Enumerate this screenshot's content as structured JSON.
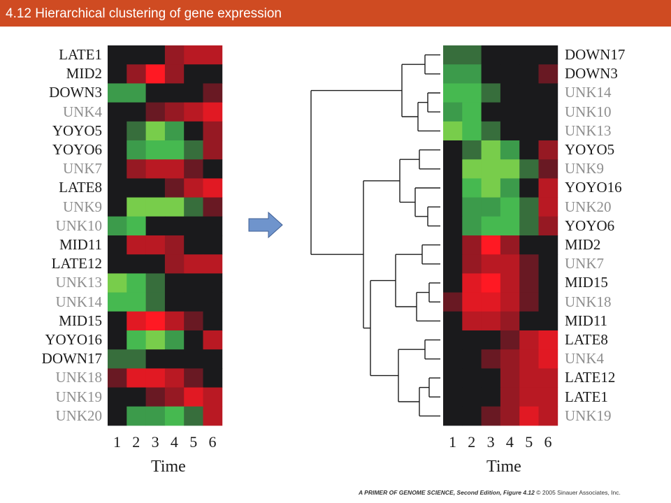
{
  "title": "4.12 Hierarchical clustering of gene expression",
  "time_label": "Time",
  "time_points": [
    "1",
    "2",
    "3",
    "4",
    "5",
    "6"
  ],
  "credit": {
    "book": "A PRIMER OF GENOME SCIENCE, Second Edition, Figure 4.12",
    "copyright": "© 2005 Sinauer Associates, Inc."
  },
  "arrow_icon": "right-arrow-icon",
  "colors": {
    "title_bar": "#cf4b22",
    "arrow_fill": "#6f94cc",
    "label_known": "#1b1b1b",
    "label_unknown": "#8e8e8e"
  },
  "left_panel": {
    "genes": [
      {
        "name": "LATE1",
        "known": true,
        "values": [
          0,
          0,
          0,
          -2,
          -3,
          -3
        ]
      },
      {
        "name": "MID2",
        "known": true,
        "values": [
          0,
          -2,
          -5,
          -2,
          0,
          0
        ]
      },
      {
        "name": "DOWN3",
        "known": true,
        "values": [
          2,
          2,
          0,
          0,
          0,
          -1
        ]
      },
      {
        "name": "UNK4",
        "known": false,
        "values": [
          0,
          0,
          -1,
          -2,
          -3,
          -4
        ]
      },
      {
        "name": "YOYO5",
        "known": true,
        "values": [
          0,
          1,
          4,
          2,
          0,
          -2
        ]
      },
      {
        "name": "YOYO6",
        "known": true,
        "values": [
          0,
          2,
          3,
          3,
          1,
          -2
        ]
      },
      {
        "name": "UNK7",
        "known": false,
        "values": [
          0,
          -2,
          -3,
          -3,
          -1,
          0
        ]
      },
      {
        "name": "LATE8",
        "known": true,
        "values": [
          0,
          0,
          0,
          -1,
          -3,
          -4
        ]
      },
      {
        "name": "UNK9",
        "known": false,
        "values": [
          0,
          4,
          4,
          4,
          1,
          -1
        ]
      },
      {
        "name": "UNK10",
        "known": false,
        "values": [
          2,
          3,
          0,
          0,
          0,
          0
        ]
      },
      {
        "name": "MID11",
        "known": true,
        "values": [
          0,
          -3,
          -3,
          -2,
          0,
          0
        ]
      },
      {
        "name": "LATE12",
        "known": true,
        "values": [
          0,
          0,
          0,
          -2,
          -3,
          -3
        ]
      },
      {
        "name": "UNK13",
        "known": false,
        "values": [
          4,
          3,
          1,
          0,
          0,
          0
        ]
      },
      {
        "name": "UNK14",
        "known": false,
        "values": [
          3,
          3,
          1,
          0,
          0,
          0
        ]
      },
      {
        "name": "MID15",
        "known": true,
        "values": [
          0,
          -4,
          -5,
          -3,
          -1,
          0
        ]
      },
      {
        "name": "YOYO16",
        "known": true,
        "values": [
          0,
          3,
          4,
          2,
          0,
          -3
        ]
      },
      {
        "name": "DOWN17",
        "known": true,
        "values": [
          1,
          1,
          0,
          0,
          0,
          0
        ]
      },
      {
        "name": "UNK18",
        "known": false,
        "values": [
          -1,
          -4,
          -4,
          -3,
          -1,
          0
        ]
      },
      {
        "name": "UNK19",
        "known": false,
        "values": [
          0,
          0,
          -1,
          -2,
          -4,
          -3
        ]
      },
      {
        "name": "UNK20",
        "known": false,
        "values": [
          0,
          2,
          2,
          3,
          1,
          -3
        ]
      }
    ]
  },
  "right_panel": {
    "genes": [
      {
        "name": "DOWN17",
        "known": true,
        "values": [
          1,
          1,
          0,
          0,
          0,
          0
        ]
      },
      {
        "name": "DOWN3",
        "known": true,
        "values": [
          2,
          2,
          0,
          0,
          0,
          -1
        ]
      },
      {
        "name": "UNK14",
        "known": false,
        "values": [
          3,
          3,
          1,
          0,
          0,
          0
        ]
      },
      {
        "name": "UNK10",
        "known": false,
        "values": [
          2,
          3,
          0,
          0,
          0,
          0
        ]
      },
      {
        "name": "UNK13",
        "known": false,
        "values": [
          4,
          3,
          1,
          0,
          0,
          0
        ]
      },
      {
        "name": "YOYO5",
        "known": true,
        "values": [
          0,
          1,
          4,
          2,
          0,
          -2
        ]
      },
      {
        "name": "UNK9",
        "known": false,
        "values": [
          0,
          4,
          4,
          4,
          1,
          -1
        ]
      },
      {
        "name": "YOYO16",
        "known": true,
        "values": [
          0,
          3,
          4,
          2,
          0,
          -3
        ]
      },
      {
        "name": "UNK20",
        "known": false,
        "values": [
          0,
          2,
          2,
          3,
          1,
          -3
        ]
      },
      {
        "name": "YOYO6",
        "known": true,
        "values": [
          0,
          2,
          3,
          3,
          1,
          -2
        ]
      },
      {
        "name": "MID2",
        "known": true,
        "values": [
          0,
          -2,
          -5,
          -2,
          0,
          0
        ]
      },
      {
        "name": "UNK7",
        "known": false,
        "values": [
          0,
          -2,
          -3,
          -3,
          -1,
          0
        ]
      },
      {
        "name": "MID15",
        "known": true,
        "values": [
          0,
          -4,
          -5,
          -3,
          -1,
          0
        ]
      },
      {
        "name": "UNK18",
        "known": false,
        "values": [
          -1,
          -4,
          -4,
          -3,
          -1,
          0
        ]
      },
      {
        "name": "MID11",
        "known": true,
        "values": [
          0,
          -3,
          -3,
          -2,
          0,
          0
        ]
      },
      {
        "name": "LATE8",
        "known": true,
        "values": [
          0,
          0,
          0,
          -1,
          -3,
          -4
        ]
      },
      {
        "name": "UNK4",
        "known": false,
        "values": [
          0,
          0,
          -1,
          -2,
          -3,
          -4
        ]
      },
      {
        "name": "LATE12",
        "known": true,
        "values": [
          0,
          0,
          0,
          -2,
          -3,
          -3
        ]
      },
      {
        "name": "LATE1",
        "known": true,
        "values": [
          0,
          0,
          0,
          -2,
          -3,
          -3
        ]
      },
      {
        "name": "UNK19",
        "known": false,
        "values": [
          0,
          0,
          -1,
          -2,
          -4,
          -3
        ]
      }
    ]
  }
}
